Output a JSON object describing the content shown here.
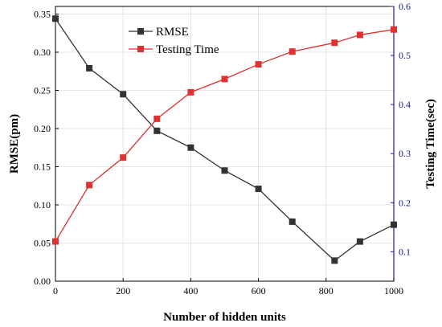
{
  "chart_data": {
    "type": "line",
    "title": "",
    "xlabel": "Number of hidden units",
    "ylabel_left": "RMSE(pm)",
    "ylabel_right": "Testing Time(sec)",
    "xlim": [
      0,
      1000
    ],
    "ylim_left": [
      0,
      0.36
    ],
    "ylim_right": [
      0.04,
      0.6
    ],
    "x_ticks": [
      "0",
      "200",
      "400",
      "600",
      "800",
      "1000"
    ],
    "y_left_ticks": [
      "0.00",
      "0.05",
      "0.10",
      "0.15",
      "0.20",
      "0.25",
      "0.30",
      "0.35"
    ],
    "y_right_ticks": [
      "0.1",
      "0.2",
      "0.3",
      "0.4",
      "0.5",
      "0.6"
    ],
    "grid": true,
    "legend_position": "top-left",
    "colors": {
      "rmse": "#333333",
      "testing_time": "#e03030",
      "right_axis": "#1a1aa0"
    },
    "series": [
      {
        "name": "RMSE",
        "axis": "left",
        "x": [
          0,
          100,
          200,
          300,
          400,
          500,
          600,
          700,
          825,
          900,
          1000
        ],
        "values": [
          0.344,
          0.279,
          0.245,
          0.197,
          0.175,
          0.145,
          0.121,
          0.078,
          0.027,
          0.052,
          0.074
        ]
      },
      {
        "name": "Testing Time",
        "axis": "right",
        "x": [
          0,
          100,
          200,
          300,
          400,
          500,
          600,
          700,
          825,
          900,
          1000
        ],
        "values": [
          0.121,
          0.236,
          0.292,
          0.371,
          0.425,
          0.452,
          0.482,
          0.508,
          0.526,
          0.542,
          0.553
        ]
      }
    ]
  }
}
